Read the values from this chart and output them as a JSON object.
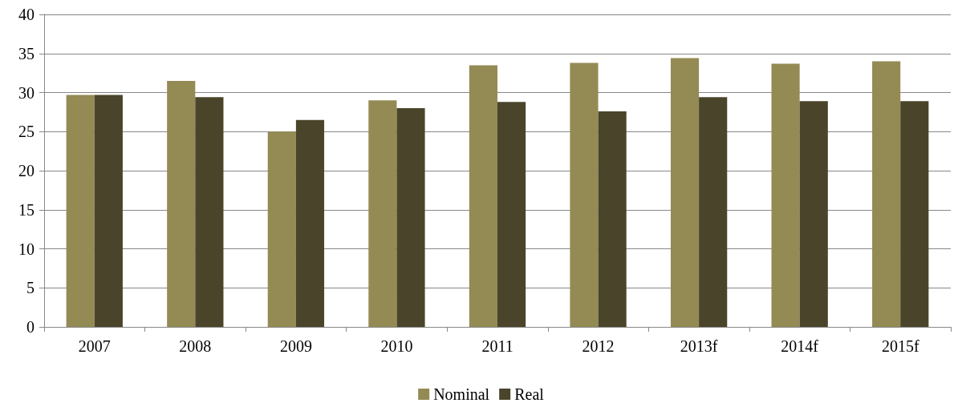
{
  "chart_data": {
    "type": "bar",
    "categories": [
      "2007",
      "2008",
      "2009",
      "2010",
      "2011",
      "2012",
      "2013f",
      "2014f",
      "2015f"
    ],
    "series": [
      {
        "name": "Nominal",
        "color": "#948a54",
        "values": [
          29.7,
          31.5,
          25.0,
          29.0,
          33.5,
          33.8,
          34.4,
          33.7,
          34.0
        ]
      },
      {
        "name": "Real",
        "color": "#4a452a",
        "values": [
          29.7,
          29.4,
          26.5,
          28.0,
          28.8,
          27.6,
          29.4,
          28.9,
          28.9
        ]
      }
    ],
    "ylim": [
      0,
      40
    ],
    "yticks": [
      0,
      5,
      10,
      15,
      20,
      25,
      30,
      35,
      40
    ],
    "grid": "y",
    "legend": "bottom"
  }
}
